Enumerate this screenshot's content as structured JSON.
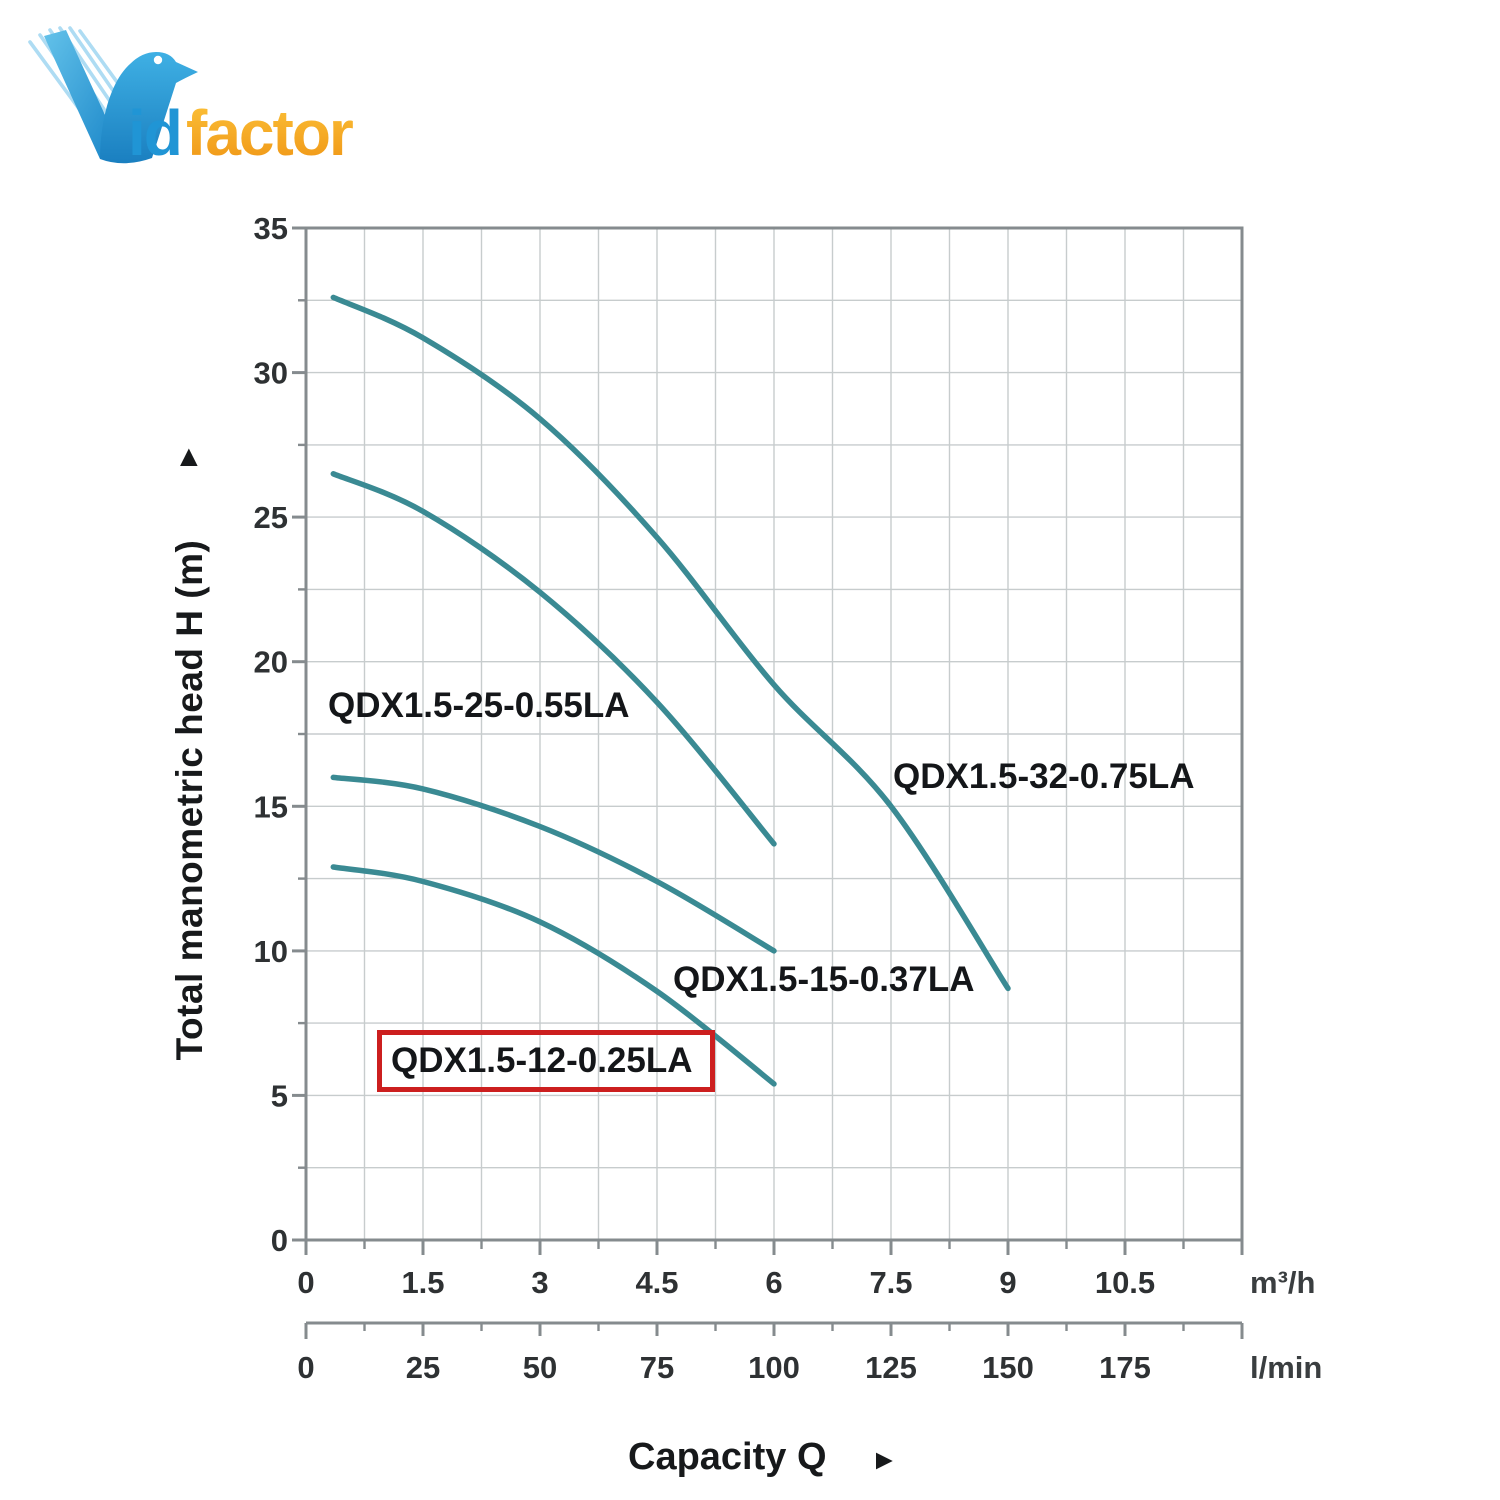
{
  "logo": {
    "text_blue": "id",
    "text_orange": "factor",
    "icon": "bird-v-logo"
  },
  "annotations": {
    "y_axis_arrow": "▲",
    "x_axis_arrow": "►"
  },
  "chart_data": {
    "type": "line",
    "title": "",
    "ylabel": "Total manometric head H (m)",
    "xlabel": "Capacity Q",
    "ylim": [
      0,
      35
    ],
    "y_major_ticks": [
      0,
      5,
      10,
      15,
      20,
      25,
      30,
      35
    ],
    "y_minor_step": 2.5,
    "x_axis_primary": {
      "unit": "m³/h",
      "range": [
        0,
        12
      ],
      "major_tick_labels": [
        "0",
        "1.5",
        "3",
        "4.5",
        "6",
        "7.5",
        "9",
        "10.5"
      ],
      "major_tick_values": [
        0,
        1.5,
        3,
        4.5,
        6,
        7.5,
        9,
        10.5
      ],
      "minor_step": 0.75
    },
    "x_axis_secondary": {
      "unit": "l/min",
      "range": [
        0,
        200
      ],
      "major_tick_labels": [
        "0",
        "25",
        "50",
        "75",
        "100",
        "125",
        "150",
        "175"
      ],
      "major_tick_values": [
        0,
        25,
        50,
        75,
        100,
        125,
        150,
        175
      ],
      "minor_step": 12.5
    },
    "grid": {
      "x_step": 0.75,
      "y_step": 2.5,
      "on": true
    },
    "legend_position": "inline-labels",
    "line_color": "#3a8a93",
    "highlight_box_color": "#cc1f1f",
    "series": [
      {
        "name": "QDX1.5-32-0.75LA",
        "highlighted": false,
        "points": [
          [
            0.35,
            32.6
          ],
          [
            1.5,
            31.2
          ],
          [
            3,
            28.4
          ],
          [
            4.5,
            24.3
          ],
          [
            6,
            19.2
          ],
          [
            7.5,
            15.0
          ],
          [
            9,
            8.7
          ]
        ]
      },
      {
        "name": "QDX1.5-25-0.55LA",
        "highlighted": false,
        "points": [
          [
            0.35,
            26.5
          ],
          [
            1.5,
            25.2
          ],
          [
            3,
            22.4
          ],
          [
            4.5,
            18.6
          ],
          [
            6,
            13.7
          ]
        ]
      },
      {
        "name": "QDX1.5-15-0.37LA",
        "highlighted": false,
        "points": [
          [
            0.35,
            16.0
          ],
          [
            1.5,
            15.6
          ],
          [
            3,
            14.3
          ],
          [
            4.5,
            12.4
          ],
          [
            6,
            10.0
          ]
        ]
      },
      {
        "name": "QDX1.5-12-0.25LA",
        "highlighted": true,
        "points": [
          [
            0.35,
            12.9
          ],
          [
            1.5,
            12.4
          ],
          [
            3,
            11.0
          ],
          [
            4.5,
            8.6
          ],
          [
            6,
            5.4
          ]
        ]
      }
    ]
  }
}
